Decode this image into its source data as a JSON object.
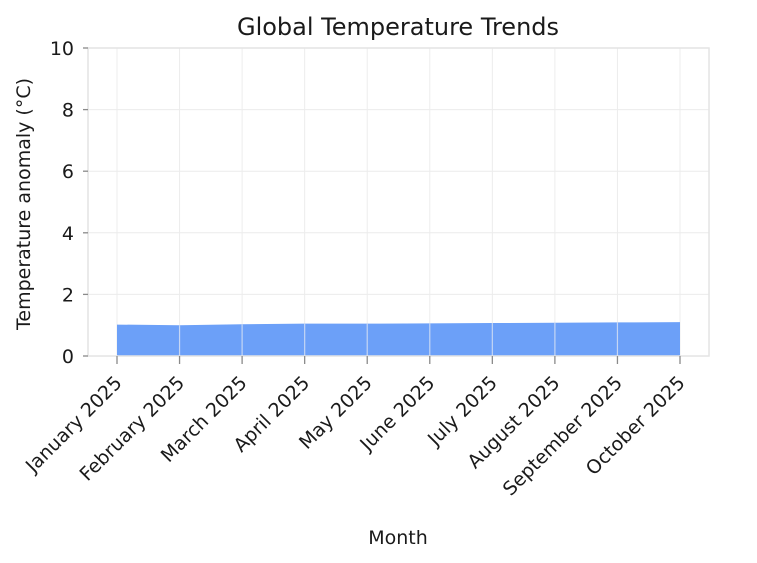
{
  "chart_data": {
    "type": "area",
    "title": "Global Temperature Trends",
    "xlabel": "Month",
    "ylabel": "Temperature anomaly (°C)",
    "categories": [
      "January 2025",
      "February 2025",
      "March 2025",
      "April 2025",
      "May 2025",
      "June 2025",
      "July 2025",
      "August 2025",
      "September 2025",
      "October 2025"
    ],
    "series": [
      {
        "values": [
          1.02,
          1.0,
          1.03,
          1.05,
          1.05,
          1.06,
          1.07,
          1.08,
          1.09,
          1.1
        ]
      }
    ],
    "ylim": [
      0,
      10
    ],
    "yticks": [
      0,
      2,
      4,
      6,
      8,
      10
    ],
    "grid": true,
    "colors": {
      "area": "#6ca0f8"
    }
  }
}
